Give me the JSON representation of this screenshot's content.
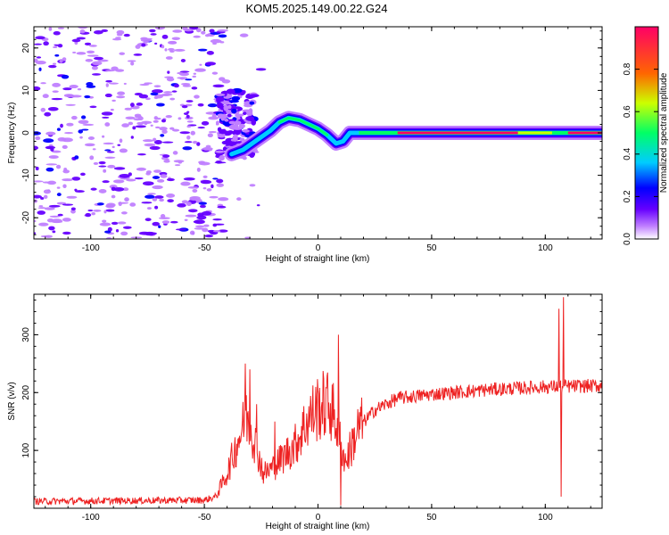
{
  "figure": {
    "title": "KOM5.2025.149.00.22.G24"
  },
  "chart_data": [
    {
      "type": "heatmap",
      "title": "KOM5.2025.149.00.22.G24",
      "xlabel": "Height of straight line (km)",
      "ylabel": "Frequency (Hz)",
      "xlim": [
        -125,
        125
      ],
      "ylim": [
        -25,
        25
      ],
      "xticks": [
        -100,
        -50,
        0,
        50,
        100
      ],
      "yticks": [
        -20,
        -10,
        0,
        10,
        20
      ],
      "xtick_labels": [
        "-100",
        "-50",
        "0",
        "50",
        "100"
      ],
      "ytick_labels": [
        "-20",
        "-10",
        "0",
        "10",
        "20"
      ],
      "colorbar": {
        "label": "Normalized spectral amplitude",
        "range": [
          0,
          1
        ],
        "ticks": [
          0.0,
          0.2,
          0.4,
          0.6,
          0.8
        ],
        "tick_labels": [
          "0.0",
          "0.2",
          "0.4",
          "0.6",
          "0.8"
        ],
        "colormap": [
          "#ffffff",
          "#c080ff",
          "#6600ff",
          "#0000ff",
          "#00ccff",
          "#00ff66",
          "#ccff00",
          "#ff6600",
          "#ff0066"
        ]
      },
      "ridge": [
        {
          "x": -38,
          "y": -5
        },
        {
          "x": -33,
          "y": -4
        },
        {
          "x": -29,
          "y": -2.5
        },
        {
          "x": -25,
          "y": -1
        },
        {
          "x": -21,
          "y": 0.5
        },
        {
          "x": -17,
          "y": 2.5
        },
        {
          "x": -13,
          "y": 3.5
        },
        {
          "x": -8,
          "y": 3
        },
        {
          "x": -4,
          "y": 2
        },
        {
          "x": 0,
          "y": 1
        },
        {
          "x": 4,
          "y": -0.5
        },
        {
          "x": 8,
          "y": -2.5
        },
        {
          "x": 11,
          "y": -2
        },
        {
          "x": 14,
          "y": 0
        },
        {
          "x": 18,
          "y": 0
        },
        {
          "x": 125,
          "y": 0
        }
      ]
    },
    {
      "type": "line",
      "xlabel": "Height of straight line (km)",
      "ylabel": "SNR (v/v)",
      "xlim": [
        -125,
        125
      ],
      "ylim": [
        0,
        370
      ],
      "xticks": [
        -100,
        -50,
        0,
        50,
        100
      ],
      "yticks": [
        100,
        200,
        300
      ],
      "xtick_labels": [
        "-100",
        "-50",
        "0",
        "50",
        "100"
      ],
      "ytick_labels": [
        "100",
        "200",
        "300"
      ],
      "line_color": "#ee2222",
      "series_profile": [
        {
          "x": -125,
          "y": 12
        },
        {
          "x": -50,
          "y": 14
        },
        {
          "x": -45,
          "y": 20
        },
        {
          "x": -40,
          "y": 60
        },
        {
          "x": -35,
          "y": 120
        },
        {
          "x": -31,
          "y": 160
        },
        {
          "x": -28,
          "y": 120
        },
        {
          "x": -24,
          "y": 60
        },
        {
          "x": -20,
          "y": 70
        },
        {
          "x": -15,
          "y": 90
        },
        {
          "x": -10,
          "y": 110
        },
        {
          "x": -5,
          "y": 150
        },
        {
          "x": 0,
          "y": 175
        },
        {
          "x": 5,
          "y": 180
        },
        {
          "x": 8,
          "y": 150
        },
        {
          "x": 12,
          "y": 80
        },
        {
          "x": 18,
          "y": 140
        },
        {
          "x": 25,
          "y": 170
        },
        {
          "x": 35,
          "y": 190
        },
        {
          "x": 50,
          "y": 197
        },
        {
          "x": 75,
          "y": 205
        },
        {
          "x": 100,
          "y": 210
        },
        {
          "x": 125,
          "y": 212
        }
      ],
      "spikes": [
        {
          "x": -32,
          "y": 250
        },
        {
          "x": -30,
          "y": 240
        },
        {
          "x": -27,
          "y": 180
        },
        {
          "x": -19,
          "y": 150
        },
        {
          "x": 9,
          "y": 300
        },
        {
          "x": 10,
          "y": 5
        },
        {
          "x": 106,
          "y": 345
        },
        {
          "x": 107,
          "y": 20
        },
        {
          "x": 108,
          "y": 365
        }
      ]
    }
  ]
}
